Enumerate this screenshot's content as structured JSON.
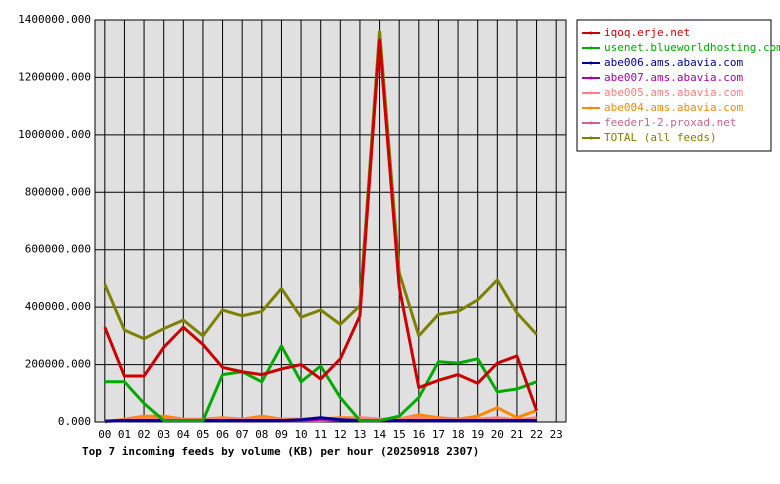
{
  "chart_data": {
    "type": "line",
    "title": "Top 7 incoming feeds by volume (KB) per hour (20250918 2307)",
    "categories": [
      "00",
      "01",
      "02",
      "03",
      "04",
      "05",
      "06",
      "07",
      "08",
      "09",
      "10",
      "11",
      "12",
      "13",
      "14",
      "15",
      "16",
      "17",
      "18",
      "19",
      "20",
      "21",
      "22",
      "23"
    ],
    "ylim": [
      0,
      1400000
    ],
    "yticks": [
      {
        "value": 0,
        "label": "0.000"
      },
      {
        "value": 200000,
        "label": "200000.000"
      },
      {
        "value": 400000,
        "label": "400000.000"
      },
      {
        "value": 600000,
        "label": "600000.000"
      },
      {
        "value": 800000,
        "label": "800000.000"
      },
      {
        "value": 1000000,
        "label": "1000000.000"
      },
      {
        "value": 1200000,
        "label": "1200000.000"
      },
      {
        "value": 1400000,
        "label": "1400000.000"
      }
    ],
    "grid": true,
    "series": [
      {
        "name": "iqoq.erje.net",
        "color": "#cc0000",
        "values": [
          330000,
          160000,
          160000,
          260000,
          330000,
          270000,
          190000,
          175000,
          165000,
          185000,
          200000,
          150000,
          220000,
          370000,
          1330000,
          470000,
          120000,
          145000,
          165000,
          135000,
          205000,
          230000,
          40000,
          null
        ]
      },
      {
        "name": "usenet.blueworldhosting.com",
        "color": "#00aa00",
        "values": [
          140000,
          140000,
          65000,
          5000,
          5000,
          5000,
          165000,
          175000,
          140000,
          265000,
          140000,
          195000,
          85000,
          5000,
          5000,
          20000,
          85000,
          210000,
          205000,
          220000,
          105000,
          115000,
          140000,
          null
        ]
      },
      {
        "name": "abe006.ams.abavia.com",
        "color": "#000099",
        "values": [
          3000,
          5000,
          5000,
          5000,
          5000,
          5000,
          5000,
          5000,
          5000,
          5000,
          8000,
          15000,
          8000,
          5000,
          5000,
          5000,
          5000,
          5000,
          5000,
          5000,
          5000,
          5000,
          5000,
          null
        ]
      },
      {
        "name": "abe007.ams.abavia.com",
        "color": "#aa00aa",
        "values": [
          3000,
          5000,
          5000,
          5000,
          5000,
          5000,
          5000,
          5000,
          5000,
          5000,
          5000,
          10000,
          8000,
          5000,
          5000,
          5000,
          5000,
          5000,
          5000,
          5000,
          5000,
          5000,
          5000,
          null
        ]
      },
      {
        "name": "abe005.ams.abavia.com",
        "color": "#ff8080",
        "values": [
          3000,
          8000,
          10000,
          10000,
          8000,
          8000,
          12000,
          8000,
          12000,
          8000,
          8000,
          8000,
          10000,
          15000,
          10000,
          12000,
          15000,
          10000,
          8000,
          10000,
          15000,
          8000,
          15000,
          null
        ]
      },
      {
        "name": "abe004.ams.abavia.com",
        "color": "#ff8800",
        "values": [
          0,
          10000,
          20000,
          20000,
          10000,
          10000,
          15000,
          10000,
          20000,
          10000,
          10000,
          10000,
          15000,
          15000,
          10000,
          10000,
          25000,
          15000,
          10000,
          20000,
          50000,
          15000,
          40000,
          null
        ]
      },
      {
        "name": "feeder1-2.proxad.net",
        "color": "#cc6688",
        "values": [
          2000,
          5000,
          8000,
          8000,
          5000,
          5000,
          8000,
          5000,
          8000,
          5000,
          5000,
          5000,
          8000,
          8000,
          5000,
          8000,
          10000,
          8000,
          5000,
          8000,
          10000,
          5000,
          8000,
          null
        ]
      },
      {
        "name": "TOTAL (all feeds)",
        "color": "#808000",
        "values": [
          480000,
          320000,
          290000,
          325000,
          355000,
          300000,
          390000,
          370000,
          385000,
          465000,
          365000,
          390000,
          340000,
          405000,
          1360000,
          520000,
          300000,
          375000,
          385000,
          425000,
          495000,
          380000,
          305000,
          null
        ]
      }
    ]
  }
}
